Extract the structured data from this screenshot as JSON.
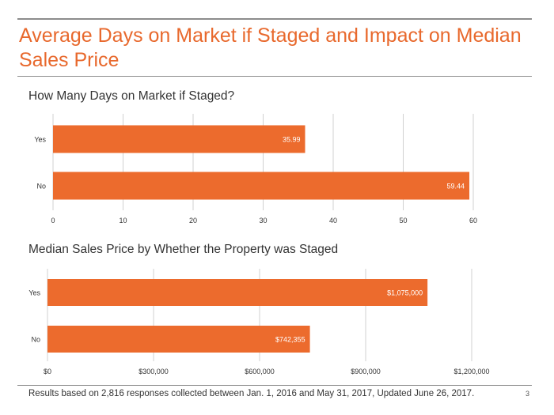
{
  "slide": {
    "title": "Average Days on Market if Staged and Impact on Median Sales Price",
    "footnote": "Results based on 2,816 responses collected between Jan. 1, 2016 and May 31, 2017, Updated June 26, 2017.",
    "page_number": "3"
  },
  "colors": {
    "accent": "#e8692d",
    "bar": "#ec6b2d",
    "grid": "#d0d0d0",
    "rule": "#8c8c8c"
  },
  "chart_data": [
    {
      "type": "bar",
      "orientation": "horizontal",
      "title": "How Many Days on Market if Staged?",
      "categories": [
        "Yes",
        "No"
      ],
      "values": [
        35.99,
        59.44
      ],
      "value_labels": [
        "35.99",
        "59.44"
      ],
      "xlim": [
        0,
        60
      ],
      "ticks": [
        0,
        10,
        20,
        30,
        40,
        50,
        60
      ],
      "tick_labels": [
        "0",
        "10",
        "20",
        "30",
        "40",
        "50",
        "60"
      ],
      "grid": true
    },
    {
      "type": "bar",
      "orientation": "horizontal",
      "title": "Median Sales Price by Whether the Property was Staged",
      "categories": [
        "Yes",
        "No"
      ],
      "values": [
        1075000,
        742355
      ],
      "value_labels": [
        "$1,075,000",
        "$742,355"
      ],
      "xlim": [
        0,
        1200000
      ],
      "ticks": [
        0,
        300000,
        600000,
        900000,
        1200000
      ],
      "tick_labels": [
        "$0",
        "$300,000",
        "$600,000",
        "$900,000",
        "$1,200,000"
      ],
      "grid": true
    }
  ]
}
